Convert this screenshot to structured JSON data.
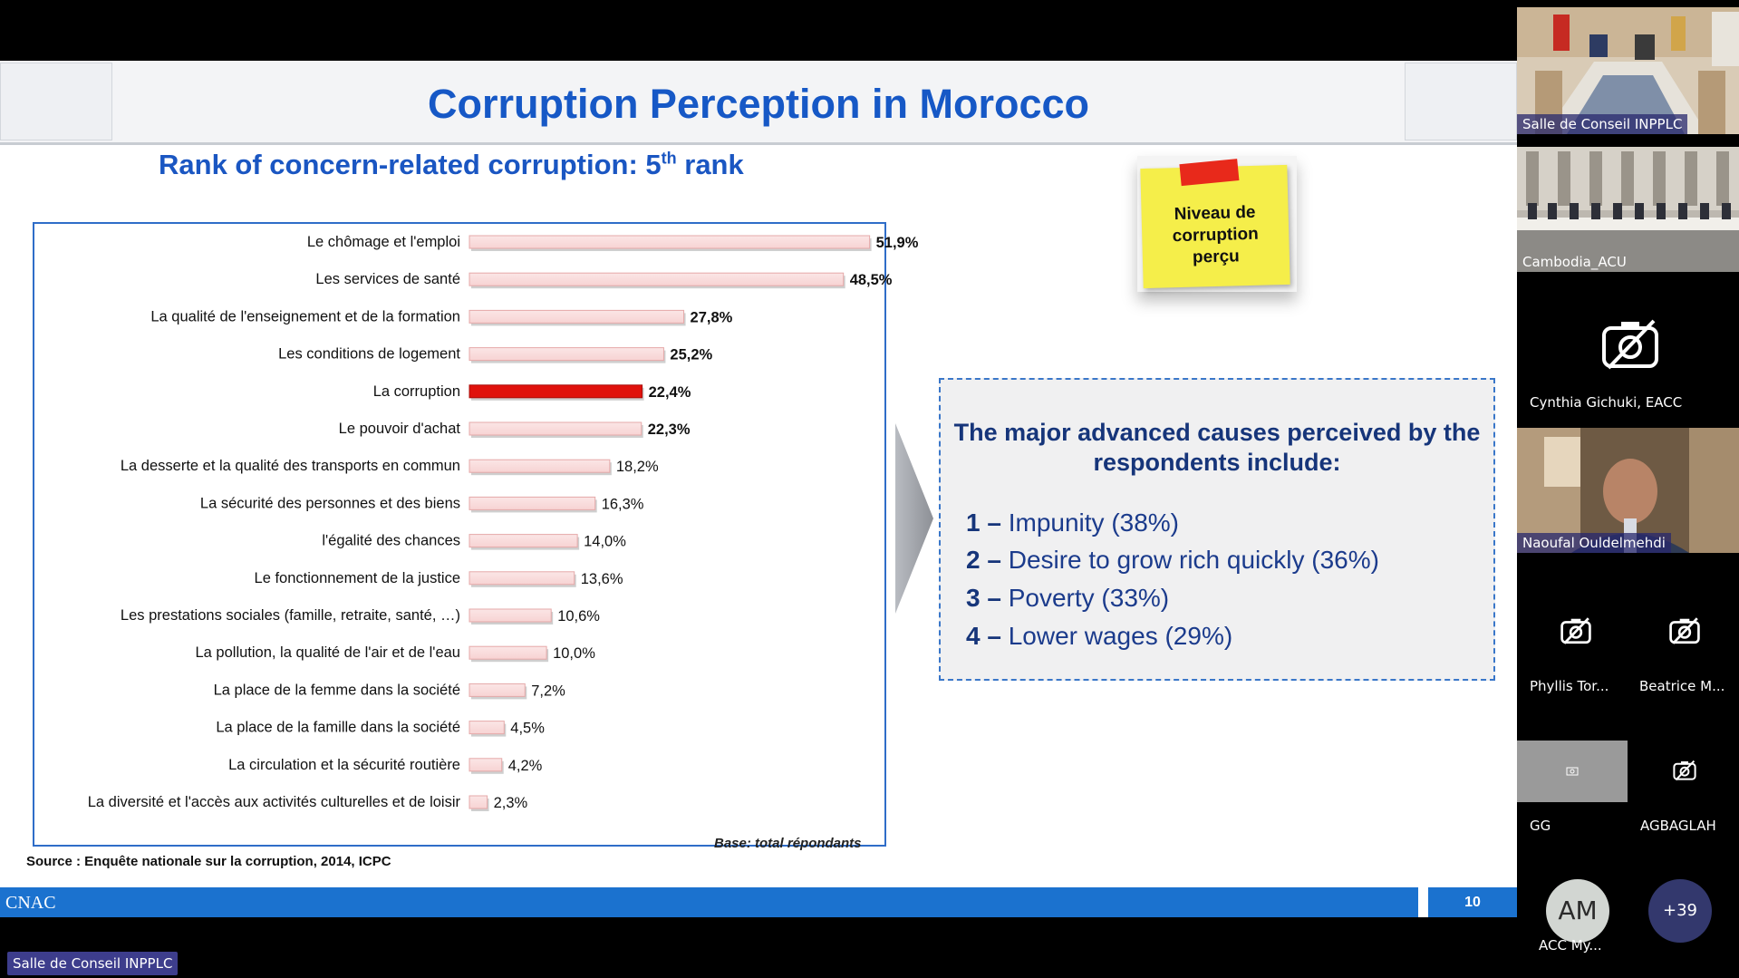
{
  "slide": {
    "title": "Corruption Perception in Morocco",
    "subtitle_main": "Rank of concern-related corruption: 5",
    "subtitle_sup": "th",
    "subtitle_tail": " rank",
    "base_note": "Base:  total répondants",
    "source": "Source : Enquête nationale sur la corruption, 2014, ICPC",
    "sticky_note": [
      "Niveau de",
      "corruption",
      "perçu"
    ],
    "causes_title_line1": "The major advanced causes perceived by the",
    "causes_title_line2": "respondents include:",
    "causes": [
      {
        "num": "1 –",
        "text": " Impunity (38%)"
      },
      {
        "num": "2 –",
        "text": " Desire to grow rich quickly (36%)"
      },
      {
        "num": "3 –",
        "text": " Poverty (33%)"
      },
      {
        "num": "4 –",
        "text": " Lower wages (29%)"
      }
    ],
    "footer_brand": "CNAC",
    "page_number": "10"
  },
  "chart_data": {
    "type": "bar",
    "orientation": "horizontal",
    "categories": [
      "Le chômage et l'emploi",
      "Les services de santé",
      "La qualité de l'enseignement et de la formation",
      "Les conditions de logement",
      "La corruption",
      "Le pouvoir d'achat",
      "La desserte et la qualité des transports en commun",
      "La sécurité des personnes et des biens",
      "l'égalité des chances",
      "Le fonctionnement de la justice",
      "Les prestations sociales (famille, retraite, santé, …)",
      "La pollution, la qualité de l'air et de l'eau",
      "La place de la femme dans la société",
      "La place de la famille dans la société",
      "La circulation et la sécurité routière",
      "La diversité et l'accès aux activités culturelles et de loisir"
    ],
    "values": [
      51.9,
      48.5,
      27.8,
      25.2,
      22.4,
      22.3,
      18.2,
      16.3,
      14.0,
      13.6,
      10.6,
      10.0,
      7.2,
      4.5,
      4.2,
      2.3
    ],
    "value_labels": [
      "51,9%",
      "48,5%",
      "27,8%",
      "25,2%",
      "22,4%",
      "22,3%",
      "18,2%",
      "16,3%",
      "14,0%",
      "13,6%",
      "10,6%",
      "10,0%",
      "7,2%",
      "4,5%",
      "4,2%",
      "2,3%"
    ],
    "bold_labels": [
      true,
      true,
      true,
      true,
      true,
      true,
      false,
      false,
      false,
      false,
      false,
      false,
      false,
      false,
      false,
      false
    ],
    "highlight_index": 4,
    "colors": {
      "bar": "#f7d3d3",
      "bar_edge": "#e5a9a9",
      "highlight": "#e0120c"
    },
    "xlim": [
      0,
      55
    ]
  },
  "participants": {
    "video_tiles": [
      {
        "name": "Salle de Conseil INPPLC"
      },
      {
        "name": "Cambodia_ACU"
      },
      {
        "name": "Naoufal Ouldelmehdi"
      }
    ],
    "cam_off": [
      {
        "name": "Cynthia Gichuki, EACC"
      },
      {
        "name": "Phyllis Tor..."
      },
      {
        "name": "Beatrice M..."
      },
      {
        "name": "GG"
      },
      {
        "name": "AGBAGLAH"
      }
    ],
    "avatar": {
      "initials": "AM",
      "name": "ACC My..."
    },
    "more_count": "+39"
  },
  "bottom_label": "Salle de Conseil INPPLC"
}
